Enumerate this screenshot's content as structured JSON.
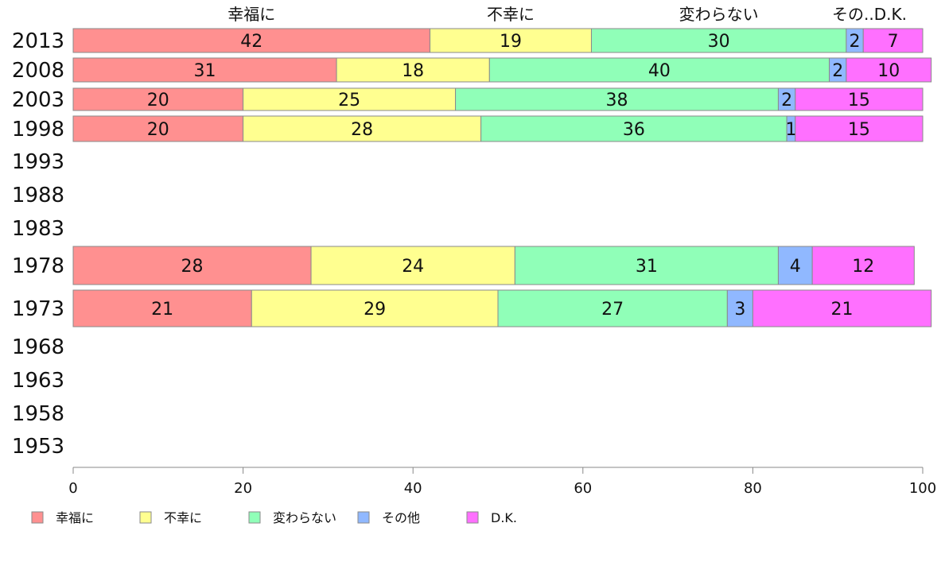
{
  "chart_data": {
    "type": "bar",
    "orientation": "horizontal",
    "stacked": true,
    "categories": [
      "2013",
      "2008",
      "2003",
      "1998",
      "1993",
      "1988",
      "1983",
      "1978",
      "1973",
      "1968",
      "1963",
      "1958",
      "1953"
    ],
    "series": [
      {
        "name": "幸福に",
        "color": "#ff9090",
        "values": [
          42,
          31,
          20,
          20,
          null,
          null,
          null,
          28,
          21,
          null,
          null,
          null,
          null
        ]
      },
      {
        "name": "不幸に",
        "color": "#ffff90",
        "values": [
          19,
          18,
          25,
          28,
          null,
          null,
          null,
          24,
          29,
          null,
          null,
          null,
          null
        ]
      },
      {
        "name": "変わらない",
        "color": "#90ffb8",
        "values": [
          30,
          40,
          38,
          36,
          null,
          null,
          null,
          31,
          27,
          null,
          null,
          null,
          null
        ]
      },
      {
        "name": "その他",
        "color": "#90b8ff",
        "values": [
          2,
          2,
          2,
          1,
          null,
          null,
          null,
          4,
          3,
          null,
          null,
          null,
          null
        ]
      },
      {
        "name": "D.K.",
        "color": "#ff70ff",
        "values": [
          7,
          10,
          15,
          15,
          null,
          null,
          null,
          12,
          21,
          null,
          null,
          null,
          null
        ]
      }
    ],
    "top_labels": [
      "幸福に",
      "不幸に",
      "変わらない",
      "その..D.K."
    ],
    "xlim": [
      0,
      100
    ],
    "xticks": [
      "0",
      "20",
      "40",
      "60",
      "80",
      "100"
    ],
    "grid": false,
    "legend_position": "bottom-left"
  }
}
